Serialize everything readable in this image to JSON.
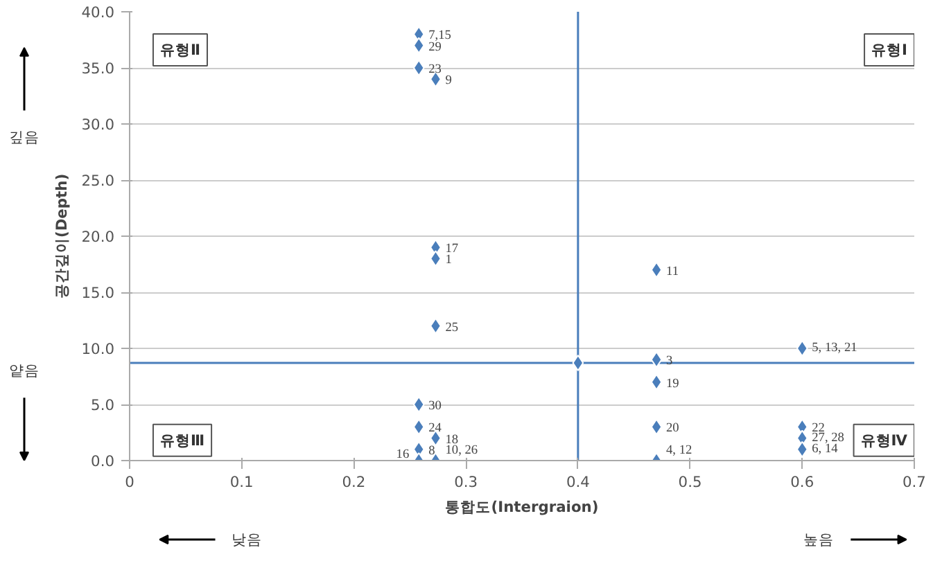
{
  "chart_data": {
    "type": "scatter",
    "xlabel": "통합도(Intergraion)",
    "ylabel": "공간깊이(Depth)",
    "x": [
      0.258,
      0.258,
      0.258,
      0.258,
      0.258,
      0.258,
      0.258,
      0.273,
      0.273,
      0.273,
      0.273,
      0.273,
      0.273,
      0.47,
      0.47,
      0.47,
      0.47,
      0.47,
      0.6,
      0.6,
      0.6,
      0.6,
      0.4
    ],
    "values": [
      38,
      37,
      35,
      5,
      3,
      1,
      0,
      34,
      19,
      18,
      12,
      2,
      0,
      17,
      9,
      7,
      3,
      0,
      10,
      3,
      2,
      1,
      8.7
    ],
    "color": "#4a7ebb",
    "marker": "diamond",
    "xlim": [
      0,
      0.7
    ],
    "ylim": [
      0,
      40
    ],
    "xticks": [
      0,
      0.1,
      0.2,
      0.3,
      0.4,
      0.5,
      0.6,
      0.7
    ],
    "yticks": [
      {
        "value": 0,
        "label": "0.0"
      },
      {
        "value": 5,
        "label": "5.0"
      },
      {
        "value": 10,
        "label": "10.0"
      },
      {
        "value": 15,
        "label": "15.0"
      },
      {
        "value": 20,
        "label": "20.0"
      },
      {
        "value": 25,
        "label": "25.0"
      },
      {
        "value": 30,
        "label": "30.0"
      },
      {
        "value": 35,
        "label": "35.0"
      },
      {
        "value": 40,
        "label": "40.0"
      }
    ],
    "grid": "y",
    "legend": false,
    "ref_lines": [
      {
        "axis": "x",
        "value": 0.4,
        "color": "#4a7ebb"
      },
      {
        "axis": "y",
        "value": 8.7,
        "color": "#4a7ebb"
      }
    ],
    "annotations": [
      "유형Ⅱ",
      "유형Ⅰ",
      "유형Ⅲ",
      "유형Ⅳ",
      "깊음",
      "얕음",
      "낮음",
      "높음",
      {
        "text": "7,15",
        "x": 0.258,
        "y": 38
      },
      {
        "text": "29",
        "x": 0.258,
        "y": 37
      },
      {
        "text": "23",
        "x": 0.258,
        "y": 35
      },
      {
        "text": "30",
        "x": 0.258,
        "y": 5
      },
      {
        "text": "24",
        "x": 0.258,
        "y": 3
      },
      {
        "text": "8",
        "x": 0.258,
        "y": 1
      },
      {
        "text": "16",
        "x": 0.258,
        "y": 0
      },
      {
        "text": "9",
        "x": 0.273,
        "y": 34
      },
      {
        "text": "17",
        "x": 0.273,
        "y": 19
      },
      {
        "text": "1",
        "x": 0.273,
        "y": 18
      },
      {
        "text": "25",
        "x": 0.273,
        "y": 12
      },
      {
        "text": "18",
        "x": 0.273,
        "y": 2
      },
      {
        "text": "10, 26",
        "x": 0.273,
        "y": 0
      },
      {
        "text": "11",
        "x": 0.47,
        "y": 17
      },
      {
        "text": "3",
        "x": 0.47,
        "y": 9
      },
      {
        "text": "19",
        "x": 0.47,
        "y": 7
      },
      {
        "text": "20",
        "x": 0.47,
        "y": 3
      },
      {
        "text": "4, 12",
        "x": 0.47,
        "y": 0
      },
      {
        "text": "5, 13, 21",
        "x": 0.6,
        "y": 10
      },
      {
        "text": "22",
        "x": 0.6,
        "y": 3
      },
      {
        "text": "27, 28",
        "x": 0.6,
        "y": 2
      },
      {
        "text": "6, 14",
        "x": 0.6,
        "y": 1
      }
    ]
  }
}
